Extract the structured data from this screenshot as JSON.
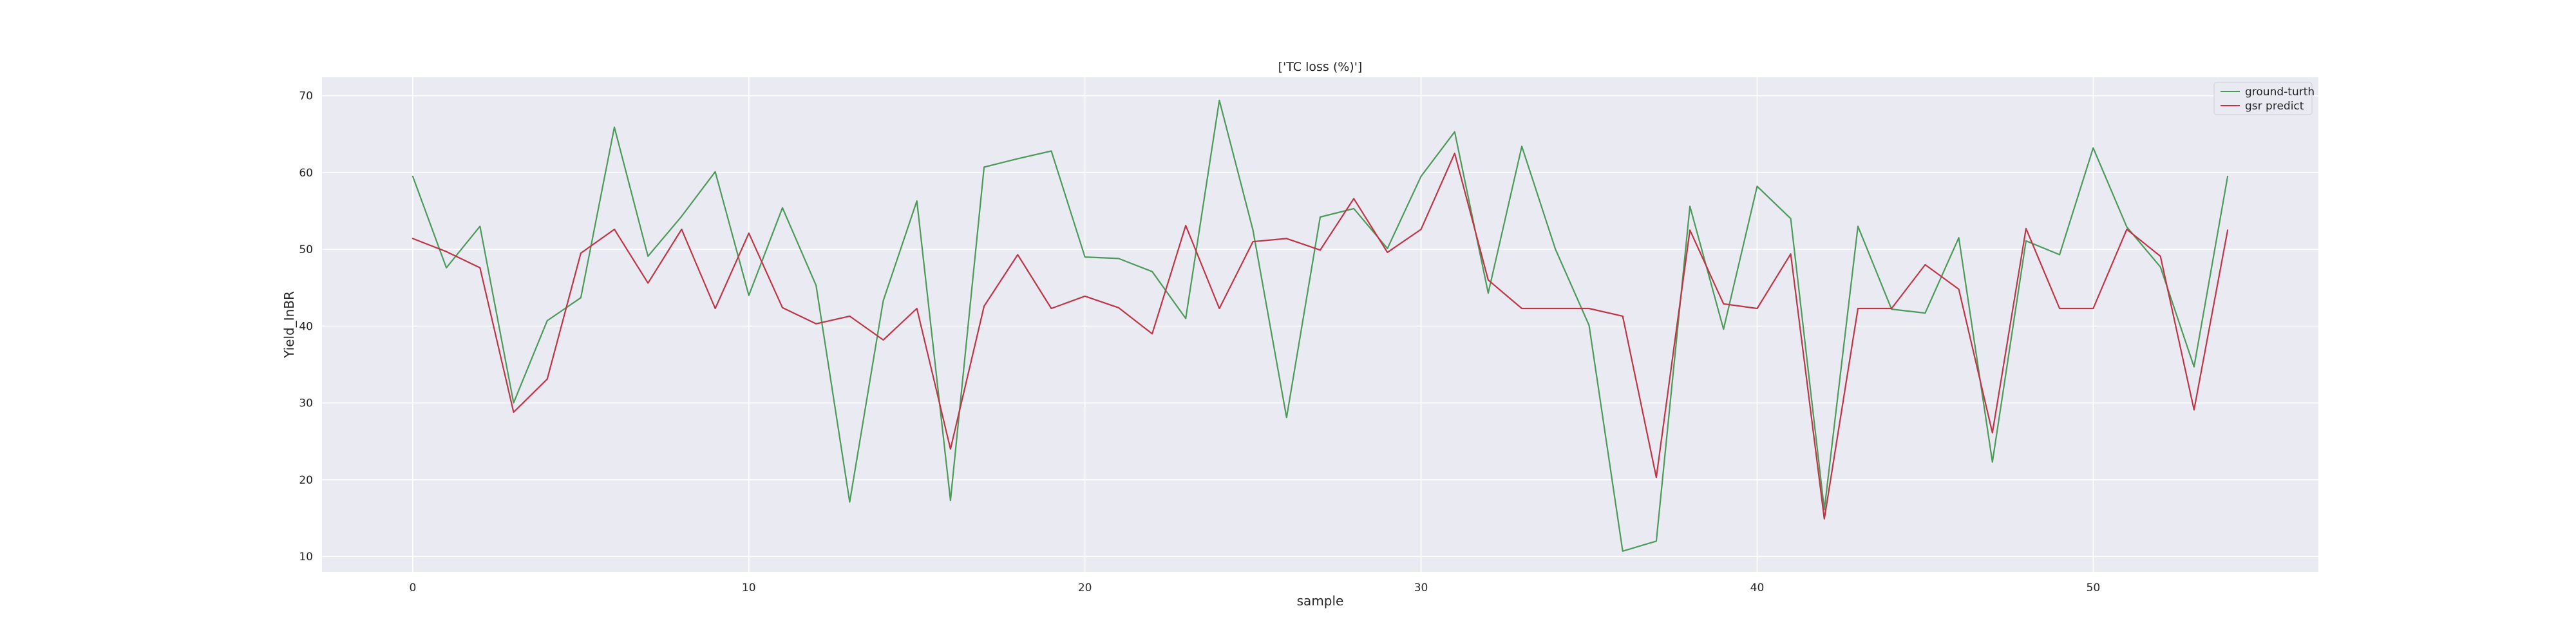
{
  "chart_data": {
    "type": "line",
    "title": "['TC loss (%)']",
    "xlabel": "sample",
    "ylabel": "Yield_InBR",
    "xlim": [
      -2.7,
      56.7
    ],
    "ylim": [
      8.0,
      72.4
    ],
    "xticks": [
      0,
      10,
      20,
      30,
      40,
      50
    ],
    "yticks": [
      10,
      20,
      30,
      40,
      50,
      60,
      70
    ],
    "grid": true,
    "legend_position": "top-right",
    "x": [
      0,
      1,
      2,
      3,
      4,
      5,
      6,
      7,
      8,
      9,
      10,
      11,
      12,
      13,
      14,
      15,
      16,
      17,
      18,
      19,
      20,
      21,
      22,
      23,
      24,
      25,
      26,
      27,
      28,
      29,
      30,
      31,
      32,
      33,
      34,
      35,
      36,
      37,
      38,
      39,
      40,
      41,
      42,
      43,
      44,
      45,
      46,
      47,
      48,
      49,
      50,
      51,
      52,
      53,
      54
    ],
    "series": [
      {
        "name": "ground-turth",
        "color": "#4c9a5a",
        "values": [
          59.5,
          47.6,
          53.0,
          30.0,
          40.7,
          43.7,
          65.9,
          49.1,
          54.3,
          60.1,
          44.0,
          55.4,
          45.3,
          17.1,
          43.3,
          56.3,
          17.3,
          60.7,
          61.8,
          62.8,
          49.0,
          48.8,
          47.1,
          41.0,
          69.4,
          52.5,
          28.1,
          54.2,
          55.3,
          50.1,
          59.5,
          65.3,
          44.3,
          63.4,
          50.0,
          40.1,
          10.7,
          12.0,
          55.6,
          39.6,
          58.2,
          54.0,
          16.1,
          53.0,
          42.2,
          41.7,
          51.5,
          22.3,
          51.1,
          49.3,
          63.2,
          52.9,
          47.7,
          34.7,
          59.5
        ]
      },
      {
        "name": "gsr predict",
        "color": "#c03545",
        "values": [
          51.4,
          49.7,
          47.6,
          28.8,
          33.1,
          49.5,
          52.6,
          45.6,
          52.6,
          42.3,
          52.1,
          42.4,
          40.3,
          41.3,
          38.2,
          42.3,
          24.0,
          42.6,
          49.3,
          42.3,
          43.9,
          42.4,
          39.0,
          53.1,
          42.3,
          51.0,
          51.4,
          49.9,
          56.6,
          49.6,
          52.6,
          62.5,
          46.0,
          42.3,
          42.3,
          42.3,
          41.3,
          20.3,
          52.5,
          42.9,
          42.3,
          49.4,
          14.9,
          42.3,
          42.3,
          48.0,
          44.8,
          26.1,
          52.7,
          42.3,
          42.3,
          52.6,
          49.1,
          29.1,
          52.5
        ]
      }
    ]
  }
}
